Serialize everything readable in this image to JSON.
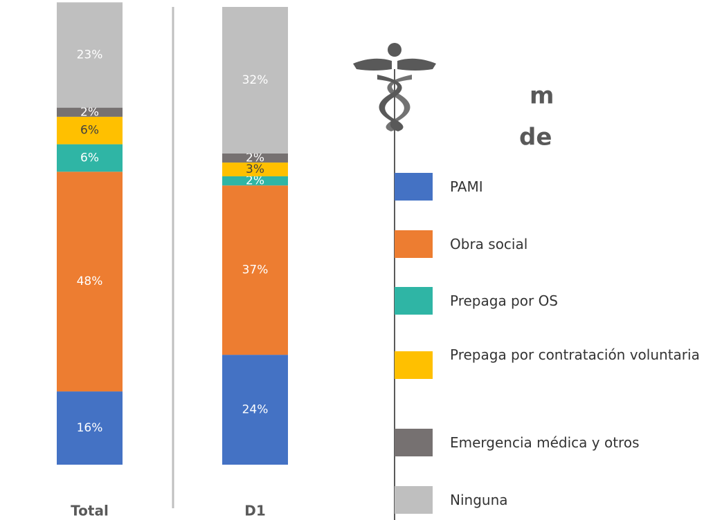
{
  "chart_data": {
    "type": "stacked_bar",
    "categories": [
      "Total",
      "D1"
    ],
    "series": [
      {
        "name": "PAMI",
        "color": "#4472c4",
        "values": [
          16,
          24
        ],
        "value_labels": [
          "16%",
          "24%"
        ]
      },
      {
        "name": "Obra social",
        "color": "#ed7d31",
        "values": [
          48,
          37
        ],
        "value_labels": [
          "48%",
          "37%"
        ]
      },
      {
        "name": "Prepaga por OS",
        "color": "#2fb5a5",
        "values": [
          6,
          2
        ],
        "value_labels": [
          "6%",
          "2%"
        ]
      },
      {
        "name": "Prepaga por contratación voluntaria",
        "color": "#ffc000",
        "values": [
          6,
          3
        ],
        "value_labels": [
          "6%",
          "3%"
        ]
      },
      {
        "name": "Emergencia médica y otros",
        "color": "#767171",
        "values": [
          2,
          2
        ],
        "value_labels": [
          "2%",
          "2%"
        ]
      },
      {
        "name": "Ninguna",
        "color": "#bfbfbf",
        "values": [
          23,
          32
        ],
        "value_labels": [
          "23%",
          "32%"
        ]
      }
    ],
    "ylim": [
      0,
      100
    ],
    "title_fragments": [
      "m",
      "de"
    ]
  }
}
